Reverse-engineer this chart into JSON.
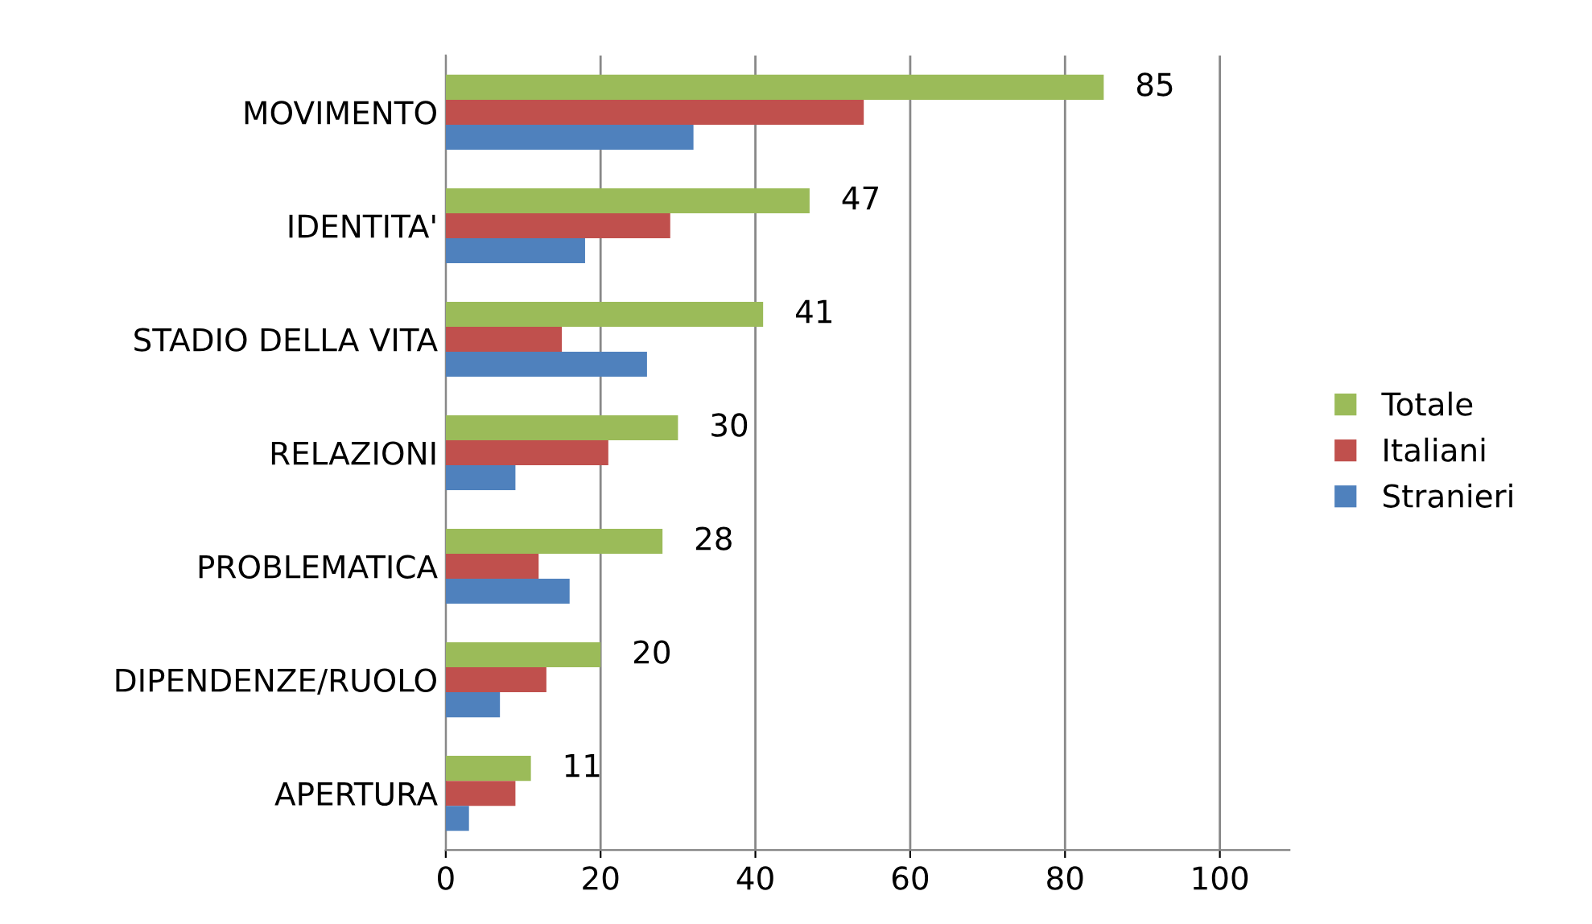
{
  "chart_data": {
    "type": "bar",
    "orientation": "horizontal",
    "categories": [
      "MOVIMENTO",
      "IDENTITA'",
      "STADIO DELLA VITA",
      "RELAZIONI",
      "PROBLEMATICA",
      "DIPENDENZE/RUOLO",
      "APERTURA"
    ],
    "series": [
      {
        "name": "Totale",
        "color": "#9bbb59",
        "values": [
          85,
          47,
          41,
          30,
          28,
          20,
          11
        ],
        "value_labels": [
          "85",
          "47",
          "41",
          "30",
          "28",
          "20",
          "11"
        ]
      },
      {
        "name": "Italiani",
        "color": "#c0504d",
        "values": [
          54,
          29,
          15,
          21,
          12,
          13,
          9
        ]
      },
      {
        "name": "Stranieri",
        "color": "#4f81bd",
        "values": [
          32,
          18,
          26,
          9,
          16,
          7,
          3
        ]
      }
    ],
    "xlim": [
      0,
      109
    ],
    "xticks": [
      0,
      20,
      40,
      60,
      80,
      100
    ],
    "grid": "x",
    "legend": "right"
  }
}
